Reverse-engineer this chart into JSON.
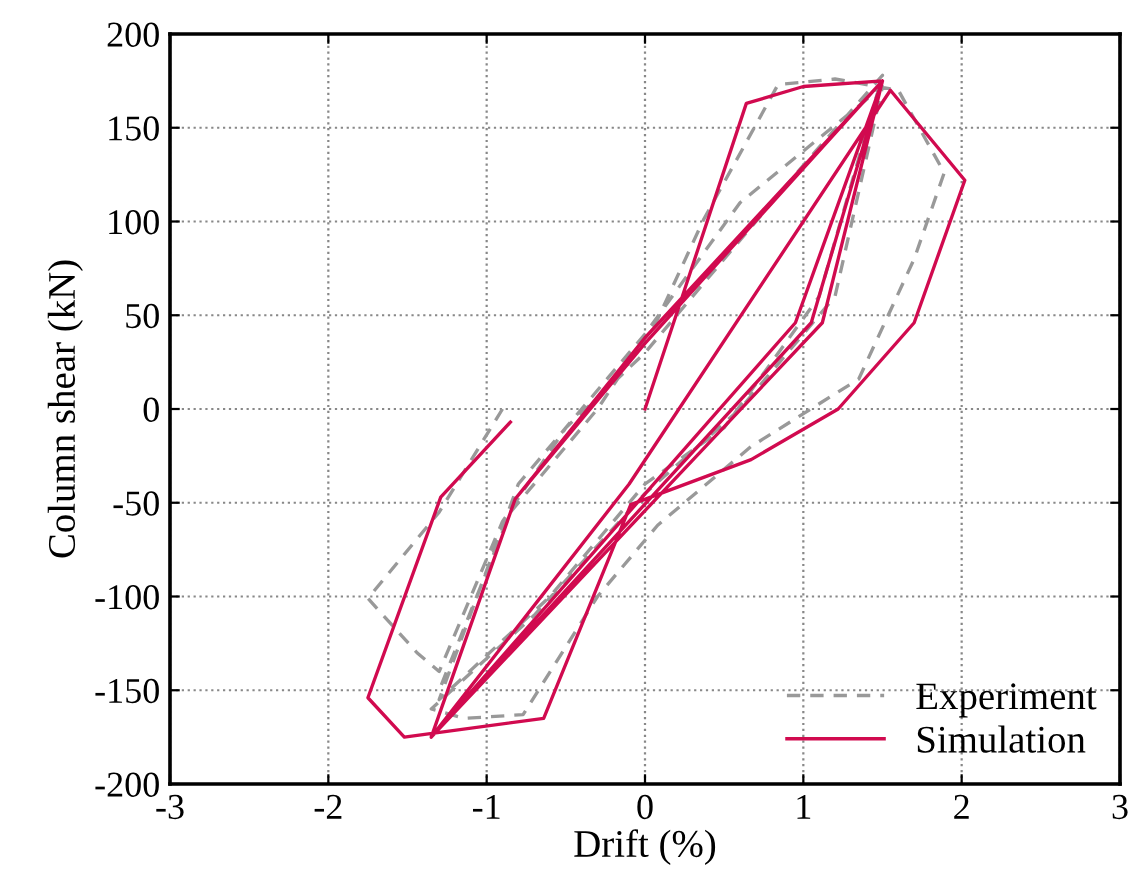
{
  "chart_data": {
    "type": "line",
    "xlabel": "Drift (%)",
    "ylabel": "Column shear (kN)",
    "xlim": [
      -3,
      3
    ],
    "ylim": [
      -200,
      200
    ],
    "xticks": [
      -3,
      -2,
      -1,
      0,
      1,
      2,
      3
    ],
    "yticks": [
      -200,
      -150,
      -100,
      -50,
      0,
      50,
      100,
      150,
      200
    ],
    "grid": true,
    "legend": "bottom right",
    "marker": "none",
    "series": [
      {
        "name": "Experiment",
        "color": "#999999",
        "line_style": "dashed",
        "x": [
          -0.9,
          -1.3,
          -1.75,
          -1.44,
          -1.3,
          -0.9,
          -0.5,
          0,
          0.5,
          1.0,
          1.5,
          1.1,
          0.5,
          0,
          -0.6,
          -1.3,
          -0.8,
          0,
          0.6,
          1.5,
          1.2,
          0.6,
          0,
          -0.7,
          -1.35,
          -1.14,
          -0.77,
          -0.3,
          0.08,
          0.67,
          1.35,
          1.7,
          1.89,
          1.6,
          1.2,
          0.84,
          0.37,
          0.08,
          -0.3,
          -0.85,
          -1.3
        ],
        "values": [
          0,
          -55,
          -101,
          -130,
          -140,
          -60,
          -10,
          30,
          80,
          130,
          178,
          60,
          -10,
          -40,
          -100,
          -155,
          -40,
          40,
          110,
          172,
          60,
          0,
          -45,
          -110,
          -160,
          -165,
          -163,
          -100,
          -62,
          -20,
          16,
          80,
          126,
          170,
          176,
          173,
          101,
          48,
          0,
          -55,
          -150
        ]
      },
      {
        "name": "Simulation",
        "color": "#d10a4f",
        "line_style": "solid",
        "x": [
          0,
          0.64,
          1.0,
          1.5,
          1.12,
          -1.35,
          -0.82,
          0,
          1.5,
          0.95,
          -1.35,
          -0.82,
          0,
          1.5,
          1.05,
          -1.35,
          -0.1,
          1.55,
          2.02,
          1.7,
          1.22,
          0.67,
          -0.09,
          -0.64,
          -1.52,
          -1.75,
          -1.29,
          -0.85
        ],
        "values": [
          0,
          163,
          172,
          175,
          46,
          -175,
          -48,
          38,
          175,
          46,
          -175,
          -48,
          35,
          175,
          46,
          -175,
          -40,
          170,
          122,
          46,
          0,
          -27,
          -51,
          -165,
          -175,
          -154,
          -47,
          -7
        ]
      }
    ]
  }
}
